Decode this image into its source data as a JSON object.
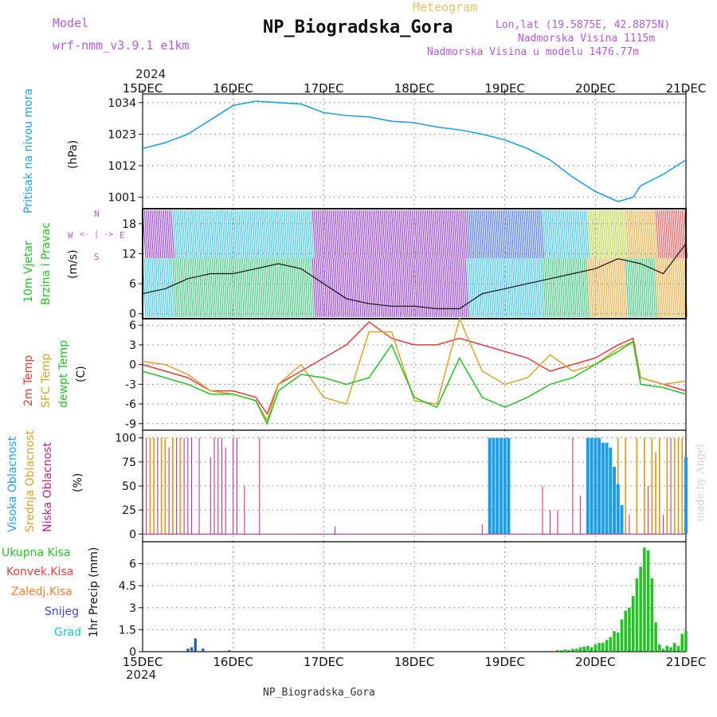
{
  "header": {
    "model_label": "Model",
    "model_name": "wrf-nmm_v3.9.1 e1km",
    "product": "Meteogram",
    "location": "NP_Biogradska_Gora",
    "coords": "Lon,lat (19.5875E, 42.8875N)",
    "elevation": "Nadmorska Visina 1115m",
    "model_elevation": "Nadmorska Visina u modelu 1476.77m",
    "year_top": "2024",
    "year_bottom": "2024",
    "footer": "NP_Biogradska_Gora",
    "credit": "made by Angel"
  },
  "colors": {
    "pressure": "#1ea0e6",
    "t2m": "#e83a3a",
    "tsfc": "#d9a32a",
    "dewpoint": "#22c322",
    "cloud_high": "#1e9de6",
    "cloud_mid": "#d9a32a",
    "cloud_low": "#c0208a",
    "precip_total": "#22c322",
    "precip_conv": "#e83a3a",
    "precip_frozen": "#ff7a2a",
    "snow": "#4040e0",
    "hail": "#22c3c3"
  },
  "x_ticks": [
    "15DEC",
    "16DEC",
    "17DEC",
    "18DEC",
    "19DEC",
    "20DEC",
    "21DEC"
  ],
  "panels": {
    "pressure": {
      "title": "Pritisak na nivou mora",
      "unit": "(hPa)",
      "yticks": [
        "1001",
        "1012",
        "1023",
        "1034"
      ]
    },
    "wind": {
      "title": "10m Vjetar",
      "title2": "Brzina i Pravac",
      "unit": "(m/s)",
      "yticks": [
        "0",
        "6",
        "12",
        "18"
      ],
      "compass": {
        "n": "N",
        "s": "S",
        "e": "E",
        "w": "W",
        "arrow": "<- | ->"
      }
    },
    "temp": {
      "label1": "2m Temp",
      "label2": "SFC Temp",
      "label3": "dewpt Temp",
      "unit": "(C)",
      "yticks": [
        "-9",
        "-6",
        "-3",
        "0",
        "3",
        "6"
      ]
    },
    "cloud": {
      "label1": "Visoka Oblacnost",
      "label2": "Srednja Oblacnost",
      "label3": "Niska Oblacnost",
      "unit": "(%)",
      "yticks": [
        "0",
        "25",
        "50",
        "75",
        "100"
      ]
    },
    "precip": {
      "legend": [
        "Ukupna Kisa",
        "Konvek.Kisa",
        "Zaledj.Kisa",
        "Snijeg",
        "Grad"
      ],
      "unit": "1hr Precip (mm)",
      "yticks": [
        "0",
        "1.5",
        "3",
        "4.5",
        "6"
      ]
    }
  },
  "chart_data": [
    {
      "type": "line",
      "x_unit": "hours from 15DEC 00UTC",
      "ylim": [
        997,
        1037
      ],
      "series": [
        {
          "name": "Pritisak na nivou mora",
          "x": [
            0,
            6,
            12,
            18,
            24,
            30,
            36,
            42,
            48,
            54,
            60,
            66,
            72,
            78,
            84,
            90,
            96,
            102,
            108,
            114,
            120,
            126,
            130,
            132,
            138,
            144
          ],
          "values": [
            1018,
            1020,
            1023,
            1028,
            1033,
            1034.5,
            1034,
            1033.5,
            1030.5,
            1029.5,
            1029,
            1027.5,
            1027,
            1025.5,
            1024.5,
            1023,
            1021,
            1018,
            1014,
            1008,
            1003,
            999.5,
            1001,
            1005,
            1009,
            1014
          ]
        }
      ]
    },
    {
      "type": "line",
      "x_unit": "hours from 15DEC 00UTC",
      "ylim": [
        -1,
        21
      ],
      "series": [
        {
          "name": "10m Vjetar",
          "x": [
            0,
            6,
            12,
            18,
            24,
            30,
            36,
            42,
            48,
            54,
            60,
            66,
            72,
            78,
            84,
            90,
            96,
            102,
            108,
            114,
            120,
            126,
            132,
            138,
            144
          ],
          "values": [
            4,
            5,
            7,
            8,
            8,
            9,
            10,
            9,
            6,
            3,
            2,
            1.5,
            1.5,
            1,
            1,
            4,
            5,
            6,
            7,
            8,
            9,
            11,
            10,
            8,
            14
          ]
        }
      ]
    },
    {
      "type": "line",
      "x_unit": "hours from 15DEC 00UTC",
      "ylim": [
        -10,
        7
      ],
      "series": [
        {
          "name": "2m Temp",
          "x": [
            0,
            6,
            12,
            18,
            24,
            30,
            33,
            36,
            42,
            48,
            54,
            60,
            66,
            72,
            78,
            84,
            90,
            96,
            102,
            108,
            114,
            120,
            126,
            130,
            132,
            138,
            144
          ],
          "values": [
            0,
            -1,
            -2,
            -4,
            -4,
            -5,
            -7.5,
            -3,
            -1,
            1,
            3,
            6.5,
            4,
            3,
            3,
            4,
            3,
            2,
            1,
            -1,
            0,
            1,
            3,
            4,
            -2,
            -3,
            -4
          ]
        },
        {
          "name": "SFC Temp",
          "x": [
            0,
            6,
            12,
            18,
            24,
            30,
            33,
            36,
            42,
            48,
            54,
            60,
            66,
            72,
            78,
            84,
            90,
            96,
            102,
            108,
            114,
            120,
            126,
            130,
            132,
            138,
            144
          ],
          "values": [
            0.5,
            0,
            -1.5,
            -4,
            -4.5,
            -5.5,
            -8.5,
            -3,
            0,
            -5,
            -6,
            5,
            5,
            -5.5,
            -6,
            7,
            -1,
            -3,
            -2,
            1.5,
            -1,
            0,
            2.5,
            3.5,
            -2,
            -3,
            -2.5
          ]
        },
        {
          "name": "dewpt Temp",
          "x": [
            0,
            6,
            12,
            18,
            24,
            30,
            33,
            36,
            42,
            48,
            54,
            60,
            66,
            72,
            78,
            84,
            90,
            96,
            102,
            108,
            114,
            120,
            126,
            130,
            132,
            138,
            144
          ],
          "values": [
            -1,
            -2,
            -3,
            -4.5,
            -4.5,
            -5.5,
            -9,
            -4,
            -1.5,
            -2,
            -3,
            -2,
            3,
            -5,
            -6.5,
            1,
            -5,
            -6.5,
            -5,
            -3,
            -2,
            0,
            2,
            3.5,
            -3,
            -3.5,
            -4.5
          ]
        }
      ]
    },
    {
      "type": "bar",
      "x_unit": "hours from 15DEC 00UTC",
      "ylim": [
        0,
        100
      ],
      "series": [
        {
          "name": "Niska Oblacnost",
          "x": [
            1,
            2,
            3,
            4,
            5,
            6,
            7,
            9,
            10,
            11,
            12,
            13,
            15,
            18,
            19,
            20,
            21,
            22,
            24,
            25,
            27,
            31,
            51,
            90,
            93,
            96,
            106,
            108,
            110,
            114,
            116,
            120,
            129,
            134,
            136,
            138,
            140,
            142
          ],
          "values": [
            100,
            100,
            100,
            100,
            100,
            100,
            90,
            100,
            100,
            100,
            100,
            100,
            100,
            80,
            100,
            100,
            100,
            90,
            100,
            100,
            50,
            100,
            8,
            10,
            10,
            100,
            50,
            25,
            25,
            100,
            40,
            30,
            20,
            50,
            60,
            20,
            100,
            100
          ]
        },
        {
          "name": "Srednja Oblacnost",
          "x": [
            2,
            3,
            5,
            6,
            8,
            10,
            92,
            93,
            94,
            95,
            96,
            97,
            120,
            121,
            126,
            128,
            131,
            133,
            135,
            136,
            137,
            139,
            141,
            142,
            143
          ],
          "values": [
            100,
            100,
            100,
            100,
            100,
            100,
            100,
            100,
            100,
            100,
            100,
            100,
            100,
            100,
            100,
            100,
            100,
            100,
            100,
            85,
            100,
            100,
            100,
            100,
            100
          ]
        },
        {
          "name": "Visoka Oblacnost",
          "x": [
            92,
            93,
            94,
            95,
            96,
            97,
            118,
            119,
            120,
            121,
            122,
            123,
            124,
            125,
            126,
            127,
            144
          ],
          "values": [
            100,
            100,
            100,
            100,
            100,
            100,
            100,
            100,
            100,
            100,
            95,
            95,
            90,
            70,
            52,
            30,
            80
          ]
        }
      ]
    },
    {
      "type": "bar",
      "x_unit": "hours from 15DEC 00UTC",
      "ylim": [
        0,
        7.5
      ],
      "series": [
        {
          "name": "Ukupna Kisa",
          "x": [
            12,
            13,
            14,
            16,
            23,
            110,
            111,
            112,
            113,
            114,
            115,
            116,
            117,
            118,
            119,
            120,
            121,
            122,
            123,
            124,
            125,
            126,
            127,
            128,
            129,
            130,
            131,
            132,
            133,
            134,
            135,
            136,
            137,
            138,
            139,
            140,
            141,
            142,
            143,
            144
          ],
          "values": [
            0.2,
            0.3,
            0.9,
            0.2,
            0.1,
            0.1,
            0.1,
            0.15,
            0.1,
            0.2,
            0.2,
            0.3,
            0.35,
            0.4,
            0.3,
            0.5,
            0.6,
            0.6,
            0.8,
            1.0,
            1.4,
            1.3,
            2.2,
            2.8,
            3.0,
            3.8,
            5.0,
            5.8,
            7.1,
            6.9,
            5.0,
            2.0,
            0.5,
            0.2,
            0.4,
            0.3,
            0.6,
            0.4,
            1.2,
            1.4
          ]
        },
        {
          "name": "Snijeg",
          "x": [
            12,
            13,
            14,
            16,
            23
          ],
          "values": [
            0.2,
            0.3,
            0.9,
            0.2,
            0.1
          ]
        }
      ]
    }
  ]
}
